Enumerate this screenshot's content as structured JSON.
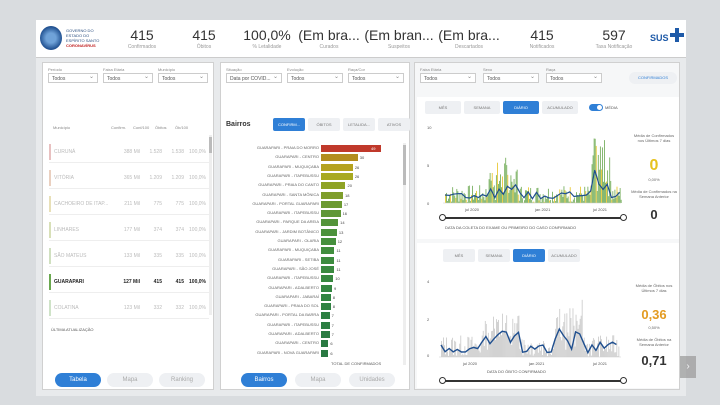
{
  "logo": {
    "line1": "GOVERNO DO ESTADO DO ESPÍRITO SANTO",
    "line2": "CORONAVÍRUS"
  },
  "kpis": [
    {
      "value": "415",
      "label": "Confirmados"
    },
    {
      "value": "415",
      "label": "Óbitos"
    },
    {
      "value": "100,0%",
      "label": "% Letalidade"
    },
    {
      "value": "(Em bra...",
      "label": "Curados"
    },
    {
      "value": "(Em bran...",
      "label": "Suspeitos"
    },
    {
      "value": "(Em bra...",
      "label": "Descartados"
    },
    {
      "value": "415",
      "label": "Notificados"
    },
    {
      "value": "597",
      "label": "Taxa Notificação"
    }
  ],
  "sus_label": "SUS",
  "panel1": {
    "filters": [
      {
        "label": "Período",
        "value": "Todos"
      },
      {
        "label": "Faixa Etária",
        "value": "Todos"
      },
      {
        "label": "Município",
        "value": "Todos"
      }
    ],
    "columns": [
      "Município",
      "Confirm.",
      "Conf/100",
      "Óbitos",
      "Ób/100",
      "Letal."
    ],
    "rows": [
      {
        "name": "CURUNÁ",
        "c1": "388 Mil",
        "c2": "1.528",
        "c3": "1.538",
        "c4": "100,0%",
        "color": "#e8c0c0"
      },
      {
        "name": "VITÓRIA",
        "c1": "365 Mil",
        "c2": "1.209",
        "c3": "1.209",
        "c4": "100,0%",
        "color": "#ead0c0"
      },
      {
        "name": "CACHOEIRO DE ITAP...",
        "c1": "211 Mil",
        "c2": "775",
        "c3": "775",
        "c4": "100,0%",
        "color": "#e8e0b8"
      },
      {
        "name": "LINHARES",
        "c1": "177 Mil",
        "c2": "374",
        "c3": "374",
        "c4": "100,0%",
        "color": "#d8e0b8"
      },
      {
        "name": "SÃO MATEUS",
        "c1": "133 Mil",
        "c2": "335",
        "c3": "335",
        "c4": "100,0%",
        "color": "#d0e0c0"
      },
      {
        "name": "GUARAPARI",
        "c1": "127 Mil",
        "c2": "415",
        "c3": "415",
        "c4": "100,0%",
        "color": "#6aa84f"
      },
      {
        "name": "COLATINA",
        "c1": "123 Mil",
        "c2": "332",
        "c3": "332",
        "c4": "100,0%",
        "color": "#cfe3c8"
      }
    ],
    "footer": "ÚLTIMA ATUALIZAÇÃO",
    "buttons": [
      "Tabela",
      "Mapa",
      "Ranking"
    ]
  },
  "panel2": {
    "filters": [
      {
        "label": "Situação",
        "value": "Data por COVID..."
      },
      {
        "label": "Evolução",
        "value": "Todos"
      },
      {
        "label": "Raça/Cor",
        "value": "Todos"
      }
    ],
    "title": "Bairros",
    "tabs": [
      "CONFIRM...",
      "ÓBITOS",
      "LETALIDA...",
      "ATIVOS"
    ],
    "bars": [
      {
        "name": "GUARAPARI - PRAIA DO MORRO",
        "value": 49,
        "color": "#c0392b"
      },
      {
        "name": "GUARAPARI - CENTRO",
        "value": 30,
        "color": "#b38d1f"
      },
      {
        "name": "GUARAPARI - MUQUIÇABA",
        "value": 26,
        "color": "#b5a21f"
      },
      {
        "name": "GUARAPARI - ITAPEBUSSU",
        "value": 26,
        "color": "#a8a920"
      },
      {
        "name": "GUARAPARI - PRAIA DO CANTO",
        "value": 20,
        "color": "#8fa325"
      },
      {
        "name": "GUARAPARI - SANTA MÔNICA",
        "value": 18,
        "color": "#7f9e2c"
      },
      {
        "name": "GUARAPARI - PORTAL GUARAPARI",
        "value": 17,
        "color": "#6c9a31"
      },
      {
        "name": "GUARAPARI - ITAPEBUSSU",
        "value": 16,
        "color": "#5f9736"
      },
      {
        "name": "GUARAPARI - PARQUE DA AREIA",
        "value": 14,
        "color": "#54943a"
      },
      {
        "name": "GUARAPARI - JARDIM BOTÂNICO",
        "value": 13,
        "color": "#4c923c"
      },
      {
        "name": "GUARAPARI - OLARIA",
        "value": 12,
        "color": "#46903d"
      },
      {
        "name": "GUARAPARI - MUQUIÇABA",
        "value": 11,
        "color": "#418e3e"
      },
      {
        "name": "GUARAPARI - SETIBA",
        "value": 11,
        "color": "#3d8c3f"
      },
      {
        "name": "GUARAPARI - SÃO JOSÉ",
        "value": 11,
        "color": "#3a8a40"
      },
      {
        "name": "GUARAPARI - ITAPEBUSSU",
        "value": 10,
        "color": "#378840"
      },
      {
        "name": "GUARAPARI - ADALBERTO",
        "value": 9,
        "color": "#348641"
      },
      {
        "name": "GUARAPARI - JABARAÍ",
        "value": 8,
        "color": "#318441"
      },
      {
        "name": "GUARAPARI - PRAIA DO SOL",
        "value": 8,
        "color": "#2f8242"
      },
      {
        "name": "GUARAPARI - PORTAL DA BARRA",
        "value": 7,
        "color": "#2d8042"
      },
      {
        "name": "GUARAPARI - ITAPEBUSSU",
        "value": 7,
        "color": "#2c7e42"
      },
      {
        "name": "GUARAPARI - ADALBERTO",
        "value": 7,
        "color": "#2b7c42"
      },
      {
        "name": "GUARAPARI - CENTRO",
        "value": 6,
        "color": "#2a7a42"
      },
      {
        "name": "GUARAPARI - NOVA GUARAPARI",
        "value": 6,
        "color": "#297842"
      }
    ],
    "footer": "TOTAL DE CONFIRMADOS",
    "buttons": [
      "Bairros",
      "Mapa",
      "Unidades"
    ]
  },
  "panel3": {
    "filters": [
      {
        "label": "Faixa Etária",
        "value": "Todos"
      },
      {
        "label": "Sexo",
        "value": "Todos"
      },
      {
        "label": "Raça",
        "value": "Todos"
      }
    ],
    "action_button": "CONFIRMADOS",
    "top": {
      "tabs": [
        "MÊS",
        "SEMANA",
        "DIÁRIO",
        "ACUMULADO"
      ],
      "toggle_label": "MÉDIA",
      "x_caption": "DATA DA COLETA DO EXAME OU PRIMEIRO DO CASO CONFIRMADO",
      "x_ticks": [
        "jul 2020",
        "jan 2021",
        "jul 2021"
      ],
      "y_ticks": [
        "10",
        "5",
        "0"
      ],
      "side_title": "Média de Confirmados nos Últimos 7 dias",
      "side_value": "0",
      "side_sub": "0,00%",
      "side_title2": "Média de Confirmados na Semana Anterior",
      "side_value2": "0"
    },
    "bottom": {
      "tabs": [
        "MÊS",
        "SEMANA",
        "DIÁRIO",
        "ACUMULADO"
      ],
      "x_caption": "DATA DO ÓBITO CONFIRMADO",
      "x_ticks": [
        "jul 2020",
        "jan 2021",
        "jul 2021"
      ],
      "y_ticks": [
        "4",
        "2",
        "0"
      ],
      "side_title": "Média de Óbitos nos Últimos 7 dias",
      "side_value": "0,36",
      "side_sub": "0,50%",
      "side_title2": "Média de Óbitos na Semana Anterior",
      "side_value2": "0,71"
    }
  },
  "colors": {
    "accent": "#2f7fd6",
    "green": "#6aa84f",
    "dark_blue": "#1f4f8f",
    "highlight_green": "#8cc63f",
    "orange": "#e39b21"
  }
}
